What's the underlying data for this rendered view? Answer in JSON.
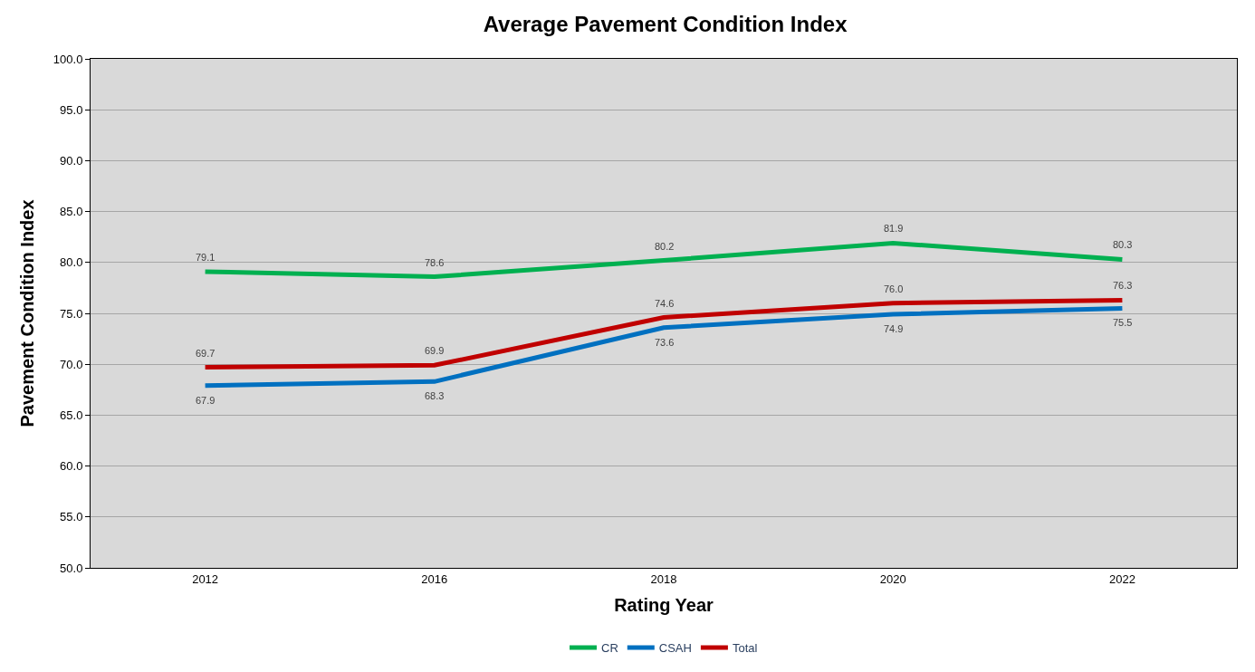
{
  "chart_data": {
    "type": "line",
    "title": "Average Pavement Condition Index",
    "xlabel": "Rating Year",
    "ylabel": "Pavement Condition Index",
    "categories": [
      "2012",
      "2016",
      "2018",
      "2020",
      "2022"
    ],
    "series": [
      {
        "name": "CR",
        "color": "#00b050",
        "values": [
          79.1,
          78.6,
          80.2,
          81.9,
          80.3
        ],
        "value_labels": [
          "79.1",
          "78.6",
          "80.2",
          "81.9",
          "80.3"
        ]
      },
      {
        "name": "CSAH",
        "color": "#0070c0",
        "values": [
          67.9,
          68.3,
          73.6,
          74.9,
          75.5
        ],
        "value_labels": [
          "67.9",
          "68.3",
          "73.6",
          "74.9",
          "75.5"
        ]
      },
      {
        "name": "Total",
        "color": "#c00000",
        "values": [
          69.7,
          69.9,
          74.6,
          76.0,
          76.3
        ],
        "value_labels": [
          "69.7",
          "69.9",
          "74.6",
          "76.0",
          "76.3"
        ]
      }
    ],
    "ylim": [
      50,
      100
    ],
    "yticks": [
      {
        "value": 50,
        "label": "50.0"
      },
      {
        "value": 55,
        "label": "55.0"
      },
      {
        "value": 60,
        "label": "60.0"
      },
      {
        "value": 65,
        "label": "65.0"
      },
      {
        "value": 70,
        "label": "70.0"
      },
      {
        "value": 75,
        "label": "75.0"
      },
      {
        "value": 80,
        "label": "80.0"
      },
      {
        "value": 85,
        "label": "85.0"
      },
      {
        "value": 90,
        "label": "90.0"
      },
      {
        "value": 95,
        "label": "95.0"
      },
      {
        "value": 100,
        "label": "100.0"
      }
    ],
    "grid": "y",
    "legend": "bottom",
    "marker": "none",
    "line_style": "solid"
  }
}
